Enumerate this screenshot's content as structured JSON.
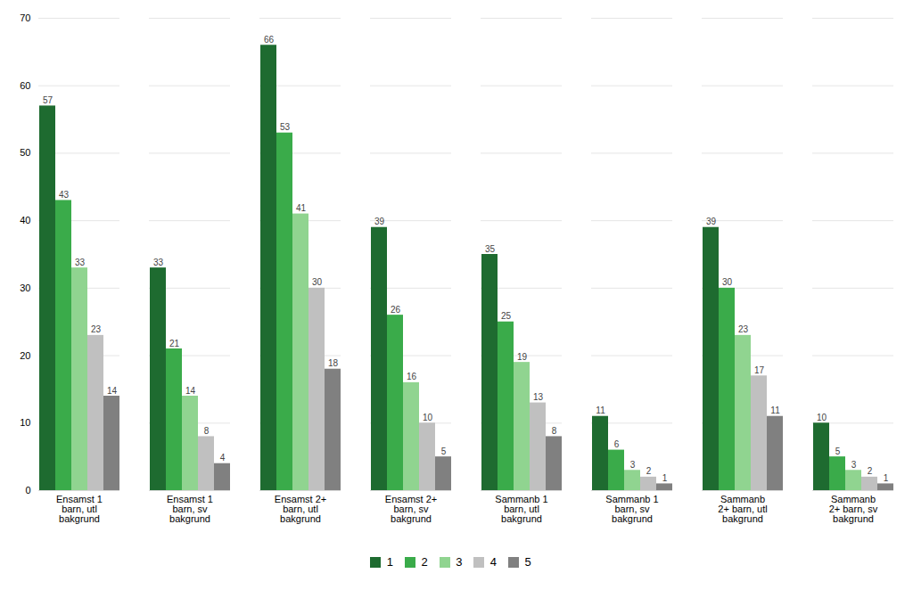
{
  "chart_data": {
    "type": "bar",
    "categories": [
      "Ensamst 1\nbarn, utl\nbakgrund",
      "Ensamst 1\nbarn, sv\nbakgrund",
      "Ensamst 2+\nbarn, utl\nbakgrund",
      "Ensamst 2+\nbarn, sv\nbakgrund",
      "Sammanb 1\nbarn, utl\nbakgrund",
      "Sammanb 1\nbarn, sv\nbakgrund",
      "Sammanb\n2+ barn, utl\nbakgrund",
      "Sammanb\n2+ barn, sv\nbakgrund"
    ],
    "series": [
      {
        "name": "1",
        "color": "#1e6b30",
        "values": [
          57,
          33,
          66,
          39,
          35,
          11,
          39,
          10
        ]
      },
      {
        "name": "2",
        "color": "#3aab4a",
        "values": [
          43,
          21,
          53,
          26,
          25,
          6,
          30,
          5
        ]
      },
      {
        "name": "3",
        "color": "#90d490",
        "values": [
          33,
          14,
          41,
          16,
          19,
          3,
          23,
          3
        ]
      },
      {
        "name": "4",
        "color": "#c0c0c0",
        "values": [
          23,
          8,
          30,
          10,
          13,
          2,
          17,
          2
        ]
      },
      {
        "name": "5",
        "color": "#808080",
        "values": [
          14,
          4,
          18,
          5,
          8,
          1,
          11,
          1
        ]
      }
    ],
    "ylim": [
      0,
      70
    ],
    "yticks": [
      0,
      10,
      20,
      30,
      40,
      50,
      60,
      70
    ],
    "grid": true,
    "data_labels": true,
    "legend": "bottom"
  }
}
